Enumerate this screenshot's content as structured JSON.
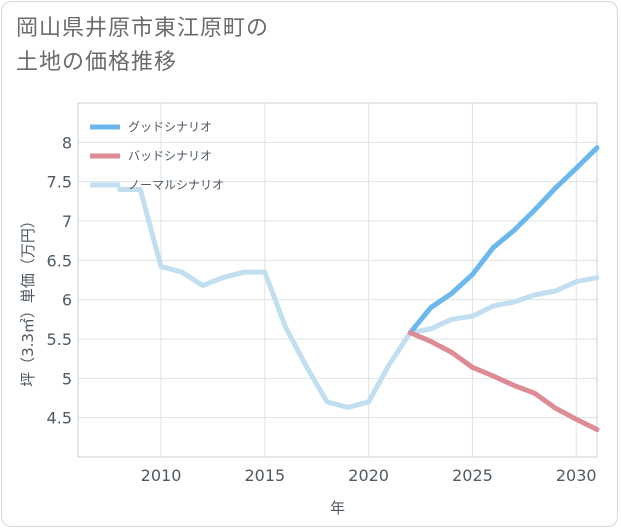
{
  "title": {
    "line1": "岡山県井原市東江原町の",
    "line2": "土地の価格推移"
  },
  "chart_data": {
    "type": "line",
    "xlabel": "年",
    "ylabel": "坪（3.3㎡）単価（万円）",
    "xlim": [
      2006,
      2031
    ],
    "ylim": [
      4.0,
      8.5
    ],
    "x_ticks": [
      2010,
      2015,
      2020,
      2025,
      2030
    ],
    "y_ticks": [
      4.5,
      5,
      5.5,
      6,
      6.5,
      7,
      7.5,
      8
    ],
    "y_tick_labels": [
      "4.5",
      "5",
      "5.5",
      "6",
      "6.5",
      "7",
      "7.5",
      "8"
    ],
    "grid": true,
    "legend_position": "top-left",
    "series": [
      {
        "name": "グッドシナリオ",
        "color": "#6cb8ec",
        "x": [
          2022,
          2023,
          2024,
          2025,
          2026,
          2027,
          2028,
          2029,
          2030,
          2031
        ],
        "y": [
          5.58,
          5.9,
          6.08,
          6.32,
          6.66,
          6.88,
          7.14,
          7.42,
          7.67,
          7.93
        ]
      },
      {
        "name": "バッドシナリオ",
        "color": "#dd8b94",
        "x": [
          2022,
          2023,
          2024,
          2025,
          2026,
          2027,
          2028,
          2029,
          2030,
          2031
        ],
        "y": [
          5.58,
          5.47,
          5.33,
          5.14,
          5.03,
          4.91,
          4.81,
          4.62,
          4.48,
          4.35
        ]
      },
      {
        "name": "ノーマルシナリオ",
        "color": "#c1dff0",
        "x": [
          2008,
          2009,
          2010,
          2011,
          2012,
          2013,
          2014,
          2015,
          2016,
          2017,
          2018,
          2019,
          2020,
          2021,
          2022,
          2023,
          2024,
          2025,
          2026,
          2027,
          2028,
          2029,
          2030,
          2031
        ],
        "y": [
          7.4,
          7.4,
          6.42,
          6.35,
          6.18,
          6.28,
          6.35,
          6.35,
          5.65,
          5.15,
          4.7,
          4.63,
          4.7,
          5.18,
          5.58,
          5.63,
          5.75,
          5.79,
          5.92,
          5.97,
          6.06,
          6.11,
          6.23,
          6.28
        ]
      }
    ]
  }
}
